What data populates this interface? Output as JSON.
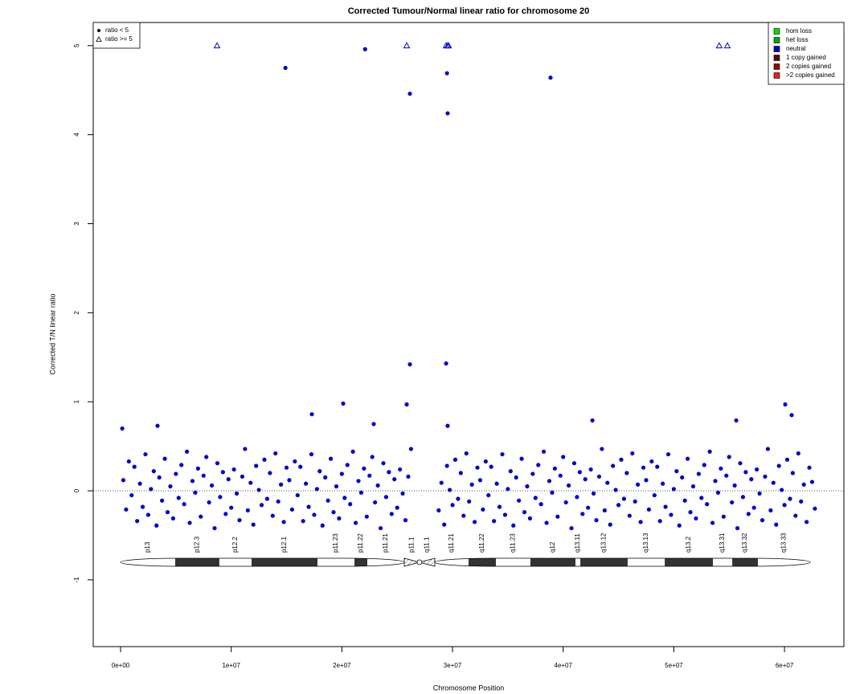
{
  "chart_data": {
    "type": "scatter",
    "title": "Corrected Tumour/Normal linear ratio for chromosome  20",
    "xlabel": "Chromosome Position",
    "ylabel": "Corrected T/N linear ratio",
    "xlim": [
      -2470000,
      65370000
    ],
    "ylim": [
      -1.75,
      5.26
    ],
    "xticks": [
      {
        "value": 0,
        "label": "0e+00"
      },
      {
        "value": 10000000,
        "label": "1e+07"
      },
      {
        "value": 20000000,
        "label": "2e+07"
      },
      {
        "value": 30000000,
        "label": "3e+07"
      },
      {
        "value": 40000000,
        "label": "4e+07"
      },
      {
        "value": 50000000,
        "label": "5e+07"
      },
      {
        "value": 60000000,
        "label": "6e+07"
      }
    ],
    "yticks": [
      -1,
      0,
      1,
      2,
      3,
      4,
      5
    ],
    "hline": 0,
    "series": [
      {
        "name": "ratio < 5",
        "marker": "circle",
        "color": "#0000cd",
        "x": [
          250000,
          500000,
          750000,
          1000000,
          1250000,
          1500000,
          1750000,
          2000000,
          2250000,
          2500000,
          2750000,
          3000000,
          3250000,
          3500000,
          3750000,
          4000000,
          4250000,
          4500000,
          4750000,
          5000000,
          5250000,
          5500000,
          5750000,
          6000000,
          6250000,
          6500000,
          6750000,
          7000000,
          7250000,
          7500000,
          7750000,
          8000000,
          8250000,
          8500000,
          8750000,
          9000000,
          9250000,
          9500000,
          9750000,
          10000000,
          10250000,
          10500000,
          10750000,
          11000000,
          11250000,
          11500000,
          11750000,
          12000000,
          12250000,
          12500000,
          12750000,
          13000000,
          13250000,
          13500000,
          13750000,
          14000000,
          14250000,
          14500000,
          14750000,
          15000000,
          15250000,
          15500000,
          15750000,
          16000000,
          16250000,
          16500000,
          16750000,
          17000000,
          17250000,
          17500000,
          17750000,
          18000000,
          18250000,
          18500000,
          18750000,
          19000000,
          19250000,
          19500000,
          19750000,
          20000000,
          20250000,
          20500000,
          20750000,
          21000000,
          21250000,
          21500000,
          21750000,
          22000000,
          22250000,
          22500000,
          22750000,
          23000000,
          23250000,
          23500000,
          23750000,
          24000000,
          24250000,
          24500000,
          24750000,
          25000000,
          25250000,
          25500000,
          25750000,
          26000000,
          26250000,
          28750000,
          29000000,
          29250000,
          29500000,
          29750000,
          30000000,
          30250000,
          30500000,
          30750000,
          31000000,
          31250000,
          31500000,
          31750000,
          32000000,
          32250000,
          32500000,
          32750000,
          33000000,
          33250000,
          33500000,
          33750000,
          34000000,
          34250000,
          34500000,
          34750000,
          35000000,
          35250000,
          35500000,
          35750000,
          36000000,
          36250000,
          36500000,
          36750000,
          37000000,
          37250000,
          37500000,
          37750000,
          38000000,
          38250000,
          38500000,
          38750000,
          39000000,
          39250000,
          39500000,
          39750000,
          40000000,
          40250000,
          40500000,
          40750000,
          41000000,
          41250000,
          41500000,
          41750000,
          42000000,
          42250000,
          42500000,
          42750000,
          43000000,
          43250000,
          43500000,
          43750000,
          44000000,
          44250000,
          44500000,
          44750000,
          45000000,
          45250000,
          45500000,
          45750000,
          46000000,
          46250000,
          46500000,
          46750000,
          47000000,
          47250000,
          47500000,
          47750000,
          48000000,
          48250000,
          48500000,
          48750000,
          49000000,
          49250000,
          49500000,
          49750000,
          50000000,
          50250000,
          50500000,
          50750000,
          51000000,
          51250000,
          51500000,
          51750000,
          52000000,
          52250000,
          52500000,
          52750000,
          53000000,
          53250000,
          53500000,
          53750000,
          54000000,
          54250000,
          54500000,
          54750000,
          55000000,
          55250000,
          55500000,
          55750000,
          56000000,
          56250000,
          56500000,
          56750000,
          57000000,
          57250000,
          57500000,
          57750000,
          58000000,
          58250000,
          58500000,
          58750000,
          59000000,
          59250000,
          59500000,
          59750000,
          60000000,
          60250000,
          60500000,
          60750000,
          61000000,
          61250000,
          61500000,
          61750000,
          62000000,
          62250000,
          62500000,
          62750000,
          14900000,
          22100000,
          26150000,
          29500000,
          29560000,
          38860000,
          26150000,
          29420000,
          25860000,
          20120000,
          17290000,
          60070000,
          60650000,
          55640000,
          42640000,
          29560000,
          3340000,
          150000,
          22880000
        ],
        "values": [
          0.12,
          -0.21,
          0.33,
          -0.05,
          0.27,
          -0.34,
          0.08,
          -0.18,
          0.41,
          -0.27,
          0.02,
          0.22,
          -0.39,
          0.15,
          -0.11,
          0.36,
          -0.24,
          0.05,
          -0.31,
          0.19,
          -0.08,
          0.29,
          -0.15,
          0.44,
          -0.36,
          0.11,
          -0.02,
          0.25,
          -0.29,
          0.17,
          0.38,
          -0.13,
          0.06,
          -0.42,
          0.31,
          -0.07,
          0.21,
          -0.26,
          0.13,
          -0.19,
          0.24,
          -0.03,
          -0.33,
          0.16,
          0.47,
          -0.22,
          0.09,
          -0.38,
          0.28,
          0.01,
          -0.16,
          0.35,
          -0.09,
          0.2,
          -0.28,
          0.42,
          -0.12,
          0.07,
          -0.35,
          0.26,
          0.12,
          -0.21,
          0.33,
          -0.05,
          0.27,
          -0.34,
          0.08,
          -0.18,
          0.41,
          -0.27,
          0.02,
          0.22,
          -0.39,
          0.15,
          -0.11,
          0.36,
          -0.24,
          0.05,
          -0.31,
          0.19,
          -0.08,
          0.29,
          -0.15,
          0.44,
          -0.36,
          0.11,
          -0.02,
          0.25,
          -0.29,
          0.17,
          0.38,
          -0.13,
          0.06,
          -0.42,
          0.31,
          -0.07,
          0.21,
          -0.26,
          0.13,
          -0.19,
          0.24,
          -0.03,
          -0.33,
          0.16,
          0.47,
          -0.22,
          0.09,
          -0.38,
          0.28,
          0.01,
          -0.16,
          0.35,
          -0.09,
          0.2,
          -0.28,
          0.42,
          -0.12,
          0.07,
          -0.35,
          0.26,
          0.12,
          -0.21,
          0.33,
          -0.05,
          0.27,
          -0.34,
          0.08,
          -0.18,
          0.41,
          -0.27,
          0.02,
          0.22,
          -0.39,
          0.15,
          -0.11,
          0.36,
          -0.24,
          0.05,
          -0.31,
          0.19,
          -0.08,
          0.29,
          -0.15,
          0.44,
          -0.36,
          0.11,
          -0.02,
          0.25,
          -0.29,
          0.17,
          0.38,
          -0.13,
          0.06,
          -0.42,
          0.31,
          -0.07,
          0.21,
          -0.26,
          0.13,
          -0.19,
          0.24,
          -0.03,
          -0.33,
          0.16,
          0.47,
          -0.22,
          0.09,
          -0.38,
          0.28,
          0.01,
          -0.16,
          0.35,
          -0.09,
          0.2,
          -0.28,
          0.42,
          -0.12,
          0.07,
          -0.35,
          0.26,
          0.12,
          -0.21,
          0.33,
          -0.05,
          0.27,
          -0.34,
          0.08,
          -0.18,
          0.41,
          -0.27,
          0.02,
          0.22,
          -0.39,
          0.15,
          -0.11,
          0.36,
          -0.24,
          0.05,
          -0.31,
          0.19,
          -0.08,
          0.29,
          -0.15,
          0.44,
          -0.36,
          0.11,
          -0.02,
          0.25,
          -0.29,
          0.17,
          0.38,
          -0.13,
          0.06,
          -0.42,
          0.31,
          -0.07,
          0.21,
          -0.26,
          0.13,
          -0.19,
          0.24,
          -0.03,
          -0.33,
          0.16,
          0.47,
          -0.22,
          0.09,
          -0.38,
          0.28,
          0.01,
          -0.16,
          0.35,
          -0.09,
          0.2,
          -0.28,
          0.42,
          -0.12,
          0.07,
          -0.35,
          0.26,
          0.1,
          -0.2,
          4.75,
          4.96,
          4.46,
          4.69,
          4.24,
          4.64,
          1.42,
          1.43,
          0.97,
          0.98,
          0.86,
          0.97,
          0.85,
          0.79,
          0.79,
          0.73,
          0.73,
          0.7,
          0.75
        ]
      },
      {
        "name": "ratio >= 5",
        "marker": "triangle",
        "color": "#0000cd",
        "x": [
          8720000,
          25860000,
          29420000,
          29560000,
          29640000,
          54100000,
          54840000
        ],
        "values": [
          5,
          5,
          5,
          5,
          5,
          5,
          5
        ]
      }
    ],
    "legend": "top-left",
    "cn_legend": [
      {
        "name": "hom loss",
        "color": "#00e000"
      },
      {
        "name": "het loss",
        "color": "#00a800"
      },
      {
        "name": "neutral",
        "color": "#0000cd"
      },
      {
        "name": "1 copy gained",
        "color": "#5a0a0a"
      },
      {
        "name": "2 copies gained",
        "color": "#a00000"
      },
      {
        "name": ">2 copies gained",
        "color": "#e02020"
      }
    ],
    "ideogram": [
      {
        "label": "p13",
        "start": 0,
        "end": 4940000,
        "stain": "gneg"
      },
      {
        "label": "p12.3",
        "start": 4940000,
        "end": 8930000,
        "stain": "gpos"
      },
      {
        "label": "p12.2",
        "start": 8930000,
        "end": 11840000,
        "stain": "gneg"
      },
      {
        "label": "p12.1",
        "start": 11840000,
        "end": 17800000,
        "stain": "gpos"
      },
      {
        "label": "p11.23",
        "start": 17800000,
        "end": 21140000,
        "stain": "gneg"
      },
      {
        "label": "p11.22",
        "start": 21140000,
        "end": 22300000,
        "stain": "gpos"
      },
      {
        "label": "p11.21",
        "start": 22300000,
        "end": 25640000,
        "stain": "gneg"
      },
      {
        "label": "p11.1",
        "start": 25640000,
        "end": 27020000,
        "stain": "acen"
      },
      {
        "label": "q11.1",
        "start": 27020000,
        "end": 28400000,
        "stain": "acen"
      },
      {
        "label": "q11.21",
        "start": 28400000,
        "end": 31450000,
        "stain": "gneg"
      },
      {
        "label": "q11.22",
        "start": 31450000,
        "end": 33920000,
        "stain": "gpos"
      },
      {
        "label": "q11.23",
        "start": 33920000,
        "end": 37040000,
        "stain": "gneg"
      },
      {
        "label": "q12",
        "start": 37040000,
        "end": 41110000,
        "stain": "gpos"
      },
      {
        "label": "q13.11",
        "start": 41110000,
        "end": 41550000,
        "stain": "gneg"
      },
      {
        "label": "q13.12",
        "start": 41550000,
        "end": 45830000,
        "stain": "gpos"
      },
      {
        "label": "q13.13",
        "start": 45830000,
        "end": 49180000,
        "stain": "gneg"
      },
      {
        "label": "q13.2",
        "start": 49180000,
        "end": 53540000,
        "stain": "gpos"
      },
      {
        "label": "q13.31",
        "start": 53540000,
        "end": 55280000,
        "stain": "gneg"
      },
      {
        "label": "q13.32",
        "start": 55280000,
        "end": 57600000,
        "stain": "gpos"
      },
      {
        "label": "q13.33",
        "start": 57600000,
        "end": 62320000,
        "stain": "gneg"
      }
    ]
  }
}
